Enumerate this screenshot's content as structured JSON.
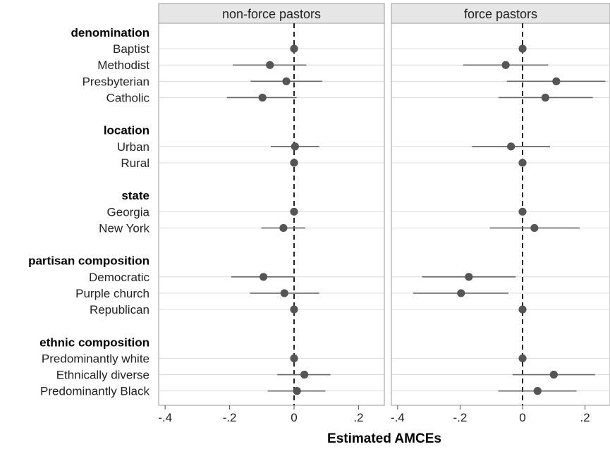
{
  "chart_data": {
    "type": "scatter",
    "xlabel": "Estimated AMCEs",
    "xlim": [
      -0.42,
      0.28
    ],
    "x_ticks": [
      -0.4,
      -0.2,
      0,
      0.2
    ],
    "x_tick_labels": [
      "-.4",
      "-.2",
      "0",
      ".2"
    ],
    "reference_line": 0,
    "grid": true,
    "rows": [
      {
        "label": "denomination",
        "header": true
      },
      {
        "label": "Baptist"
      },
      {
        "label": "Methodist"
      },
      {
        "label": "Presbyterian"
      },
      {
        "label": "Catholic"
      },
      {
        "label": "",
        "spacer": true
      },
      {
        "label": "location",
        "header": true
      },
      {
        "label": "Urban"
      },
      {
        "label": "Rural"
      },
      {
        "label": "",
        "spacer": true
      },
      {
        "label": "state",
        "header": true
      },
      {
        "label": "Georgia"
      },
      {
        "label": "New York"
      },
      {
        "label": "",
        "spacer": true
      },
      {
        "label": "partisan composition",
        "header": true
      },
      {
        "label": "Democratic"
      },
      {
        "label": "Purple church"
      },
      {
        "label": "Republican"
      },
      {
        "label": "",
        "spacer": true
      },
      {
        "label": "ethnic composition",
        "header": true
      },
      {
        "label": "Predominantly white"
      },
      {
        "label": "Ethnically diverse"
      },
      {
        "label": "Predominantly Black"
      }
    ],
    "panels": [
      {
        "title": "non-force pastors",
        "points": {
          "Baptist": {
            "est": 0.0,
            "lo": 0.0,
            "hi": 0.0
          },
          "Methodist": {
            "est": -0.075,
            "lo": -0.19,
            "hi": 0.038
          },
          "Presbyterian": {
            "est": -0.024,
            "lo": -0.135,
            "hi": 0.087
          },
          "Catholic": {
            "est": -0.098,
            "lo": -0.208,
            "hi": 0.008
          },
          "Urban": {
            "est": 0.003,
            "lo": -0.072,
            "hi": 0.078
          },
          "Rural": {
            "est": 0.0,
            "lo": 0.0,
            "hi": 0.0
          },
          "Georgia": {
            "est": 0.0,
            "lo": 0.0,
            "hi": 0.0
          },
          "New York": {
            "est": -0.033,
            "lo": -0.102,
            "hi": 0.035
          },
          "Democratic": {
            "est": -0.095,
            "lo": -0.195,
            "hi": 0.002
          },
          "Purple church": {
            "est": -0.03,
            "lo": -0.137,
            "hi": 0.078
          },
          "Republican": {
            "est": 0.0,
            "lo": 0.0,
            "hi": 0.0
          },
          "Predominantly white": {
            "est": 0.0,
            "lo": 0.0,
            "hi": 0.0
          },
          "Ethnically diverse": {
            "est": 0.032,
            "lo": -0.052,
            "hi": 0.113
          },
          "Predominantly Black": {
            "est": 0.009,
            "lo": -0.082,
            "hi": 0.097
          }
        }
      },
      {
        "title": "force pastors",
        "points": {
          "Baptist": {
            "est": 0.0,
            "lo": 0.0,
            "hi": 0.0
          },
          "Methodist": {
            "est": -0.054,
            "lo": -0.19,
            "hi": 0.082
          },
          "Presbyterian": {
            "est": 0.108,
            "lo": -0.05,
            "hi": 0.265
          },
          "Catholic": {
            "est": 0.073,
            "lo": -0.077,
            "hi": 0.225
          },
          "Urban": {
            "est": -0.037,
            "lo": -0.162,
            "hi": 0.088
          },
          "Rural": {
            "est": 0.0,
            "lo": 0.0,
            "hi": 0.0
          },
          "Georgia": {
            "est": 0.0,
            "lo": 0.0,
            "hi": 0.0
          },
          "New York": {
            "est": 0.038,
            "lo": -0.105,
            "hi": 0.183
          },
          "Democratic": {
            "est": -0.172,
            "lo": -0.322,
            "hi": -0.022
          },
          "Purple church": {
            "est": -0.197,
            "lo": -0.35,
            "hi": -0.045
          },
          "Republican": {
            "est": 0.0,
            "lo": 0.0,
            "hi": 0.0
          },
          "Predominantly white": {
            "est": 0.0,
            "lo": 0.0,
            "hi": 0.0
          },
          "Ethnically diverse": {
            "est": 0.1,
            "lo": -0.032,
            "hi": 0.232
          },
          "Predominantly Black": {
            "est": 0.048,
            "lo": -0.078,
            "hi": 0.173
          }
        }
      }
    ],
    "colors": {
      "point": "#555555",
      "ci_line": "#666666",
      "grid": "#dcdcdc",
      "strip_bg": "#e6e6e6",
      "frame": "#999999",
      "zero_line": "#222222"
    }
  }
}
